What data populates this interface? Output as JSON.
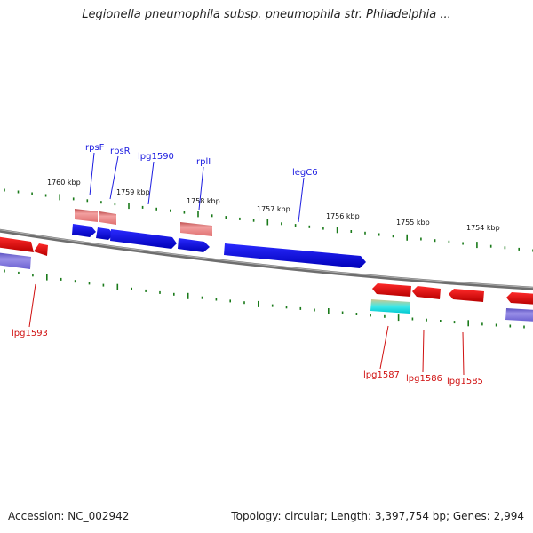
{
  "header": {
    "title": "Legionella pneumophila subsp. pneumophila str. Philadelphia ..."
  },
  "footer": {
    "accession": "Accession: NC_002942",
    "summary": "Topology: circular; Length: 3,397,754 bp; Genes: 2,994"
  },
  "scale_labels": [
    "1760 kbp",
    "1759 kbp",
    "1758 kbp",
    "1757 kbp",
    "1756 kbp",
    "1755 kbp",
    "1754 kbp"
  ],
  "gene_labels": {
    "forward": [
      "rpsF",
      "rpsR",
      "lpg1590",
      "rplI",
      "legC6"
    ],
    "reverse": [
      "lpg1593",
      "lpg1587",
      "lpg1586",
      "lpg1585"
    ]
  },
  "colors": {
    "forward_gene": "#1010e8",
    "reverse_gene": "#e81010",
    "rna_gene": "#e88080",
    "pseudo_gene": "#6a5acd",
    "cyan_feature": "#00d8d8",
    "tan_feature": "#c8b878",
    "backbone": "#808080",
    "ticks": "#1a7a1a"
  }
}
